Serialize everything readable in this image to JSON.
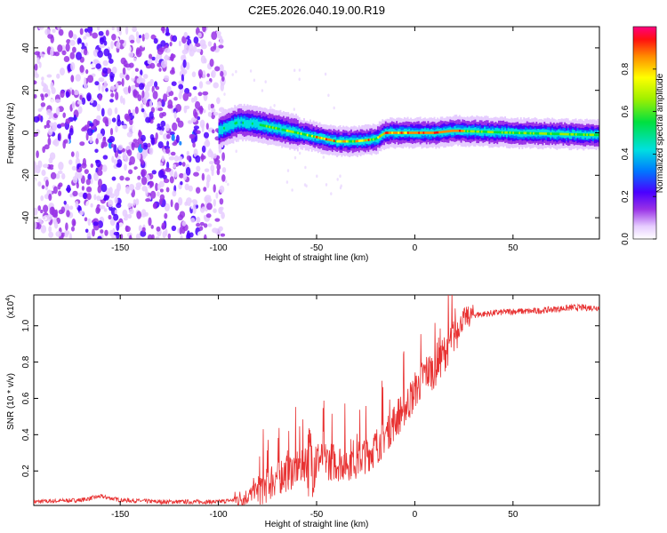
{
  "figure_title": "C2E5.2026.040.19.00.R19",
  "colors": {
    "snr_line": "#e83232",
    "axis": "#000000"
  },
  "chart_data": [
    {
      "type": "heatmap",
      "title": "C2E5.2026.040.19.00.R19",
      "xlabel": "Height of straight line (km)",
      "ylabel": "Frequency (Hz)",
      "xlim": [
        -194,
        94
      ],
      "ylim": [
        -50,
        50
      ],
      "x_ticks": [
        -150,
        -100,
        -50,
        0,
        50
      ],
      "y_ticks": [
        -40,
        -20,
        0,
        20,
        40
      ],
      "colorbar": {
        "label": "Normalized spectral amplitude",
        "range": [
          0,
          1
        ],
        "ticks": [
          0.0,
          0.2,
          0.4,
          0.6,
          0.8
        ],
        "tick_labels": [
          "0.0",
          "0.2",
          "0.4",
          "0.6",
          "0.8"
        ]
      },
      "ridge": {
        "description_points_x": [
          -100,
          -90,
          -80,
          -70,
          -60,
          -50,
          -40,
          -30,
          -20,
          -15,
          -10,
          0,
          10,
          20,
          50,
          92
        ],
        "description_points_y": [
          1,
          5,
          4,
          2,
          0,
          -2,
          -4,
          -4,
          -3,
          0,
          0,
          0,
          0,
          1,
          0,
          -1
        ]
      }
    },
    {
      "type": "line",
      "xlabel": "Height of straight line (km)",
      "ylabel": "SNR (10 * v/v)",
      "y_multiplier_label": "(x10",
      "y_multiplier_exp": "4",
      "y_multiplier_close": ")",
      "xlim": [
        -194,
        94
      ],
      "ylim": [
        0.01,
        1.17
      ],
      "x_ticks": [
        -150,
        -100,
        -50,
        0,
        50
      ],
      "y_ticks": [
        0.2,
        0.4,
        0.6,
        0.8,
        1.0
      ],
      "series": [
        {
          "name": "SNR",
          "x_knots": [
            -194,
            -170,
            -160,
            -150,
            -130,
            -100,
            -92,
            -85,
            -80,
            -70,
            -60,
            -55,
            -50,
            -40,
            -30,
            -20,
            -10,
            0,
            5,
            10,
            15,
            20,
            25,
            30,
            40,
            50,
            60,
            70,
            80,
            94
          ],
          "y_knots": [
            0.03,
            0.04,
            0.06,
            0.04,
            0.03,
            0.03,
            0.04,
            0.06,
            0.1,
            0.17,
            0.22,
            0.26,
            0.27,
            0.25,
            0.26,
            0.33,
            0.48,
            0.63,
            0.74,
            0.76,
            0.85,
            0.95,
            1.04,
            1.06,
            1.07,
            1.08,
            1.08,
            1.09,
            1.1,
            1.1
          ]
        }
      ]
    }
  ]
}
